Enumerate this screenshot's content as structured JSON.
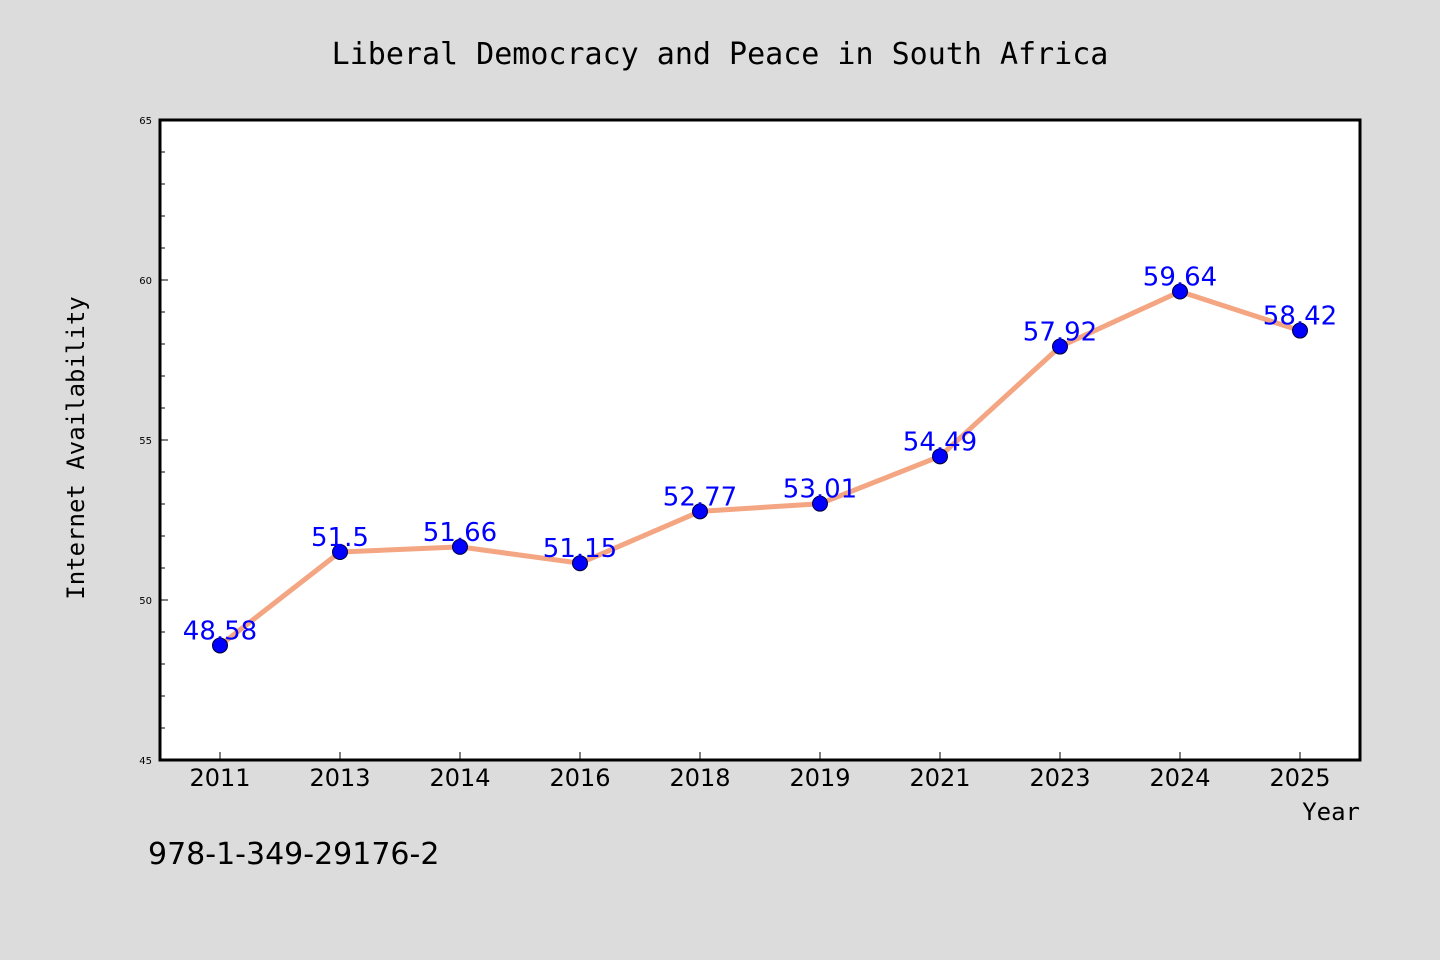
{
  "chart_data": {
    "type": "line",
    "title": "Liberal Democracy and Peace in South Africa",
    "xlabel": "Year",
    "ylabel": "Internet Availability",
    "categories": [
      "2011",
      "2013",
      "2014",
      "2016",
      "2018",
      "2019",
      "2021",
      "2023",
      "2024",
      "2025"
    ],
    "series": [
      {
        "values": [
          48.58,
          51.5,
          51.66,
          51.15,
          52.77,
          53.01,
          54.49,
          57.92,
          59.64,
          58.42
        ],
        "data_labels": [
          "48.58",
          "51.5",
          "51.66",
          "51.15",
          "52.77",
          "53.01",
          "54.49",
          "57.92",
          "59.64",
          "58.42"
        ],
        "line_color": "#f4a582",
        "marker_color": "#0000ff"
      }
    ],
    "ylim": [
      45,
      65
    ],
    "y_ticks": [
      "45",
      "50",
      "55",
      "60",
      "65"
    ],
    "grid": false,
    "legend": "none",
    "label_color": "#0000ff"
  },
  "annotation": "978-1-349-29176-2"
}
